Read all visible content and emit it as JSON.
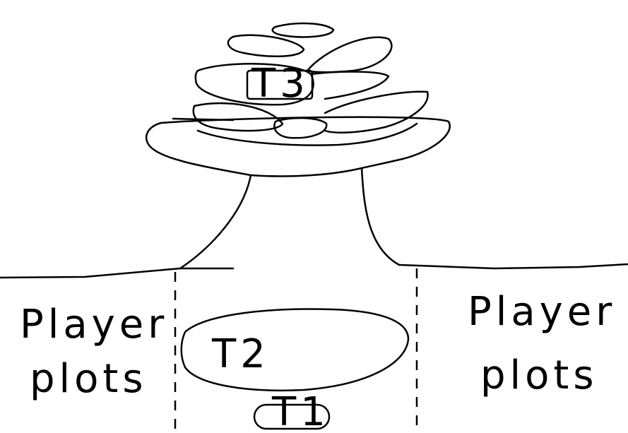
{
  "labels": {
    "t3": "T3",
    "t2": "T2",
    "t1": "T1",
    "left_player_line1": "Player",
    "left_player_line2": "plots",
    "right_player_line1": "Player",
    "right_player_line2": "plots"
  }
}
